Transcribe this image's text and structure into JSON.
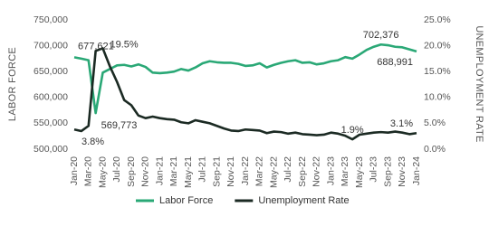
{
  "chart_data": {
    "type": "line",
    "y_label": "LABOR FORCE",
    "y2_label": "UNEMPLOYMENT RATE",
    "categories": [
      "Jan-20",
      null,
      "Mar-20",
      null,
      "May-20",
      null,
      "Jul-20",
      null,
      "Sep-20",
      null,
      "Nov-20",
      null,
      "Jan-21",
      null,
      "Mar-21",
      null,
      "May-21",
      null,
      "Jul-21",
      null,
      "Sep-21",
      null,
      "Nov-21",
      null,
      "Jan-22",
      null,
      "Mar-22",
      null,
      "May-22",
      null,
      "Jul-22",
      null,
      "Sep-22",
      null,
      "Nov-22",
      null,
      "Jan-23",
      null,
      "Mar-23",
      null,
      "May-23",
      null,
      "Jul-23",
      null,
      "Sep-23",
      null,
      "Nov-23",
      null,
      "Jan-24"
    ],
    "series": [
      {
        "name": "Labor Force",
        "color": "#2aa876",
        "axis": "y",
        "values": [
          677621,
          675000,
          672000,
          569773,
          648000,
          655000,
          662000,
          663000,
          660000,
          664000,
          659000,
          648000,
          647000,
          648000,
          650000,
          655000,
          652000,
          658000,
          666000,
          670000,
          668000,
          667000,
          667000,
          665000,
          661000,
          662000,
          666000,
          658000,
          663000,
          667000,
          670000,
          672000,
          667000,
          668000,
          664000,
          666000,
          670000,
          672000,
          678000,
          675000,
          683000,
          692000,
          698000,
          702376,
          701000,
          698000,
          697000,
          693000,
          688991
        ],
        "value_labels": [
          "677,621",
          null,
          null,
          "569,773",
          null,
          null,
          null,
          null,
          null,
          null,
          null,
          null,
          null,
          null,
          null,
          null,
          null,
          null,
          null,
          null,
          null,
          null,
          null,
          null,
          null,
          null,
          null,
          null,
          null,
          null,
          null,
          null,
          null,
          null,
          null,
          null,
          null,
          null,
          null,
          null,
          null,
          null,
          null,
          "702,376",
          null,
          null,
          null,
          null,
          "688,991"
        ]
      },
      {
        "name": "Unemployment Rate",
        "color": "#1b2a23",
        "axis": "y2",
        "values": [
          3.8,
          3.5,
          4.5,
          19.0,
          19.5,
          16.0,
          13.0,
          9.5,
          8.5,
          6.5,
          6.0,
          6.3,
          6.0,
          5.8,
          5.7,
          5.2,
          5.0,
          5.6,
          5.3,
          5.0,
          4.5,
          4.0,
          3.6,
          3.5,
          3.8,
          3.7,
          3.6,
          3.1,
          3.4,
          3.3,
          3.0,
          3.2,
          2.9,
          2.8,
          2.7,
          2.8,
          3.2,
          3.0,
          2.6,
          1.9,
          2.8,
          3.0,
          3.2,
          3.3,
          3.2,
          3.4,
          3.2,
          2.9,
          3.1
        ],
        "value_labels": [
          "3.8%",
          null,
          null,
          null,
          "19.5%",
          null,
          null,
          null,
          null,
          null,
          null,
          null,
          null,
          null,
          null,
          null,
          null,
          null,
          null,
          null,
          null,
          null,
          null,
          null,
          null,
          null,
          null,
          null,
          null,
          null,
          null,
          null,
          null,
          null,
          null,
          null,
          null,
          null,
          null,
          "1.9%",
          null,
          null,
          null,
          null,
          null,
          null,
          null,
          null,
          "3.1%"
        ]
      }
    ],
    "ylim": [
      500000,
      750000
    ],
    "yticks": [
      {
        "value": 500000,
        "label": "500,000"
      },
      {
        "value": 550000,
        "label": "550,000"
      },
      {
        "value": 600000,
        "label": "600,000"
      },
      {
        "value": 650000,
        "label": "650,000"
      },
      {
        "value": 700000,
        "label": "700,000"
      },
      {
        "value": 750000,
        "label": "750,000"
      }
    ],
    "y2lim": [
      0,
      25
    ],
    "y2ticks": [
      {
        "value": 0,
        "label": "0.0%"
      },
      {
        "value": 5,
        "label": "5.0%"
      },
      {
        "value": 10,
        "label": "10.0%"
      },
      {
        "value": 15,
        "label": "15.0%"
      },
      {
        "value": 20,
        "label": "20.0%"
      },
      {
        "value": 25,
        "label": "25.0%"
      }
    ],
    "grid": false
  }
}
